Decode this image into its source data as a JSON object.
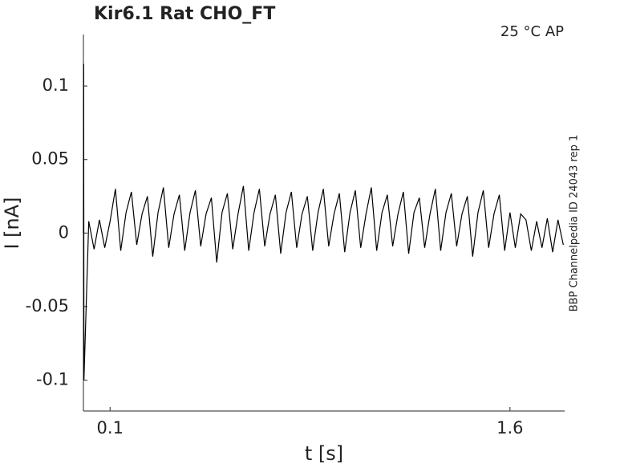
{
  "chart_data": {
    "type": "line",
    "title": "Kir6.1  Rat  CHO_FT",
    "annotation": "25 °C  AP",
    "side_note": "BBP Channelpedia ID 24043 rep 1",
    "xlabel": "t [s]",
    "ylabel": "I [nA]",
    "xlim": [
      0,
      1.805
    ],
    "ylim": [
      -0.121,
      0.135
    ],
    "xticks": [
      0.1,
      1.6
    ],
    "yticks": [
      -0.1,
      -0.05,
      0,
      0.05,
      0.1
    ],
    "grid": false,
    "series": [
      {
        "color": "#000000",
        "x": [
          0,
          0.001,
          0.002,
          0.02,
          0.04,
          0.06,
          0.08,
          0.1,
          0.12,
          0.14,
          0.16,
          0.18,
          0.2,
          0.22,
          0.24,
          0.26,
          0.28,
          0.3,
          0.32,
          0.34,
          0.36,
          0.38,
          0.4,
          0.42,
          0.44,
          0.46,
          0.48,
          0.5,
          0.52,
          0.54,
          0.56,
          0.58,
          0.6,
          0.62,
          0.64,
          0.66,
          0.68,
          0.7,
          0.72,
          0.74,
          0.76,
          0.78,
          0.8,
          0.82,
          0.84,
          0.86,
          0.88,
          0.9,
          0.92,
          0.94,
          0.96,
          0.98,
          1,
          1.02,
          1.04,
          1.06,
          1.08,
          1.1,
          1.12,
          1.14,
          1.16,
          1.18,
          1.2,
          1.22,
          1.24,
          1.26,
          1.28,
          1.3,
          1.32,
          1.34,
          1.36,
          1.38,
          1.4,
          1.42,
          1.44,
          1.46,
          1.48,
          1.5,
          1.52,
          1.54,
          1.56,
          1.58,
          1.6,
          1.62,
          1.64,
          1.66,
          1.68,
          1.7,
          1.72,
          1.74,
          1.76,
          1.78,
          1.8
        ],
        "values": [
          0,
          0.115,
          -0.1,
          0.008,
          -0.011,
          0.009,
          -0.01,
          0.008,
          0.03,
          -0.012,
          0.014,
          0.028,
          -0.008,
          0.013,
          0.025,
          -0.016,
          0.014,
          0.031,
          -0.01,
          0.013,
          0.026,
          -0.012,
          0.014,
          0.029,
          -0.009,
          0.013,
          0.024,
          -0.02,
          0.014,
          0.027,
          -0.011,
          0.013,
          0.032,
          -0.012,
          0.014,
          0.03,
          -0.009,
          0.013,
          0.026,
          -0.014,
          0.014,
          0.028,
          -0.01,
          0.013,
          0.025,
          -0.012,
          0.014,
          0.03,
          -0.009,
          0.013,
          0.027,
          -0.013,
          0.014,
          0.029,
          -0.01,
          0.013,
          0.031,
          -0.012,
          0.014,
          0.026,
          -0.009,
          0.013,
          0.028,
          -0.014,
          0.014,
          0.024,
          -0.01,
          0.013,
          0.03,
          -0.012,
          0.014,
          0.027,
          -0.009,
          0.013,
          0.025,
          -0.016,
          0.014,
          0.029,
          -0.01,
          0.013,
          0.026,
          -0.012,
          0.014,
          -0.01,
          0.013,
          0.009,
          -0.012,
          0.008,
          -0.01,
          0.01,
          -0.013,
          0.009,
          -0.008
        ]
      }
    ]
  }
}
